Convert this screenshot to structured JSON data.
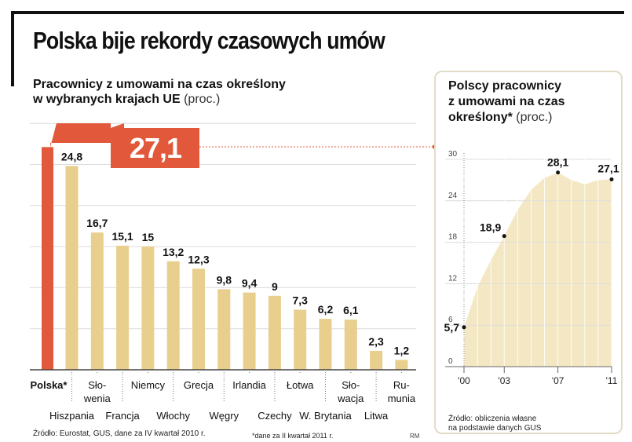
{
  "header": {
    "title": "Polska bije rekordy czasowych umów"
  },
  "left": {
    "subtitle_line1": "Pracownicy z umowami na czas określony",
    "subtitle_line2": "w wybranych krajach UE",
    "unit": "(proc.)",
    "source": "Źródło: Eurostat, GUS, dane za IV kwartał 2010 r.",
    "footnote": "*dane za II kwartał 2011 r.",
    "author": "RM"
  },
  "right": {
    "subtitle_line1": "Polscy pracownicy",
    "subtitle_line2": "z umowami na czas",
    "subtitle_line3": "określony*",
    "unit": "(proc.)",
    "source_line1": "Źródło: obliczenia własne",
    "source_line2": "na podstawie danych GUS"
  },
  "colors": {
    "highlight": "#e2583a",
    "bar": "#e8cf8e",
    "area": "#f4e8c4",
    "grid": "#dcdcdc"
  },
  "chart_data": [
    {
      "type": "bar",
      "title": "Pracownicy z umowami na czas określony w wybranych krajach UE (proc.)",
      "categories": [
        "Polska*",
        "Hiszpania",
        "Słowenia",
        "Francja",
        "Niemcy",
        "Włochy",
        "Grecja",
        "Węgry",
        "Irlandia",
        "Czechy",
        "Łotwa",
        "W. Brytania",
        "Słowacja",
        "Litwa",
        "Rumunia"
      ],
      "label_rows": {
        "Polska*": [
          "Polska*"
        ],
        "Hiszpania": [
          "Hiszpania"
        ],
        "Słowenia": [
          "Sło-",
          "wenia"
        ],
        "Francja": [
          "Francja"
        ],
        "Niemcy": [
          "Niemcy"
        ],
        "Włochy": [
          "Włochy"
        ],
        "Grecja": [
          "Grecja"
        ],
        "Węgry": [
          "Węgry"
        ],
        "Irlandia": [
          "Irlandia"
        ],
        "Czechy": [
          "Czechy"
        ],
        "Łotwa": [
          "Łotwa"
        ],
        "W. Brytania": [
          "W. Brytania"
        ],
        "Słowacja": [
          "Sło-",
          "wacja"
        ],
        "Litwa": [
          "Litwa"
        ],
        "Rumunia": [
          "Ru-",
          "munia"
        ]
      },
      "values": [
        27.1,
        24.8,
        16.7,
        15.1,
        15,
        13.2,
        12.3,
        9.8,
        9.4,
        9,
        7.3,
        6.2,
        6.1,
        2.3,
        1.2
      ],
      "value_labels": [
        "27,1",
        "24,8",
        "16,7",
        "15,1",
        "15",
        "13,2",
        "12,3",
        "9,8",
        "9,4",
        "9",
        "7,3",
        "6,2",
        "6,1",
        "2,3",
        "1,2"
      ],
      "highlight": "Polska*",
      "ylim": [
        0,
        30
      ],
      "grid": true,
      "xlabel": "",
      "ylabel": ""
    },
    {
      "type": "area",
      "title": "Polscy pracownicy z umowami na czas określony* (proc.)",
      "x": [
        2000,
        2001,
        2002,
        2003,
        2004,
        2005,
        2006,
        2007,
        2008,
        2009,
        2010,
        2011
      ],
      "values": [
        5.7,
        11.5,
        15.4,
        18.9,
        22.7,
        25.6,
        27.3,
        28.1,
        27.0,
        26.4,
        27.0,
        27.1
      ],
      "labeled_points": [
        {
          "x": 2000,
          "label": "5,7"
        },
        {
          "x": 2003,
          "label": "18,9"
        },
        {
          "x": 2007,
          "label": "28,1"
        },
        {
          "x": 2011,
          "label": "27,1"
        }
      ],
      "x_ticks": [
        {
          "x": 2000,
          "label": "'00"
        },
        {
          "x": 2003,
          "label": "'03"
        },
        {
          "x": 2007,
          "label": "'07"
        },
        {
          "x": 2011,
          "label": "'11"
        }
      ],
      "y_ticks": [
        {
          "y": 0,
          "label": "0"
        },
        {
          "y": 6,
          "label": "6"
        },
        {
          "y": 12,
          "label": "12"
        },
        {
          "y": 18,
          "label": "18"
        },
        {
          "y": 24,
          "label": "24"
        },
        {
          "y": 30,
          "label": "30"
        }
      ],
      "ylim": [
        0,
        30
      ],
      "grid": true,
      "xlabel": "",
      "ylabel": ""
    }
  ]
}
